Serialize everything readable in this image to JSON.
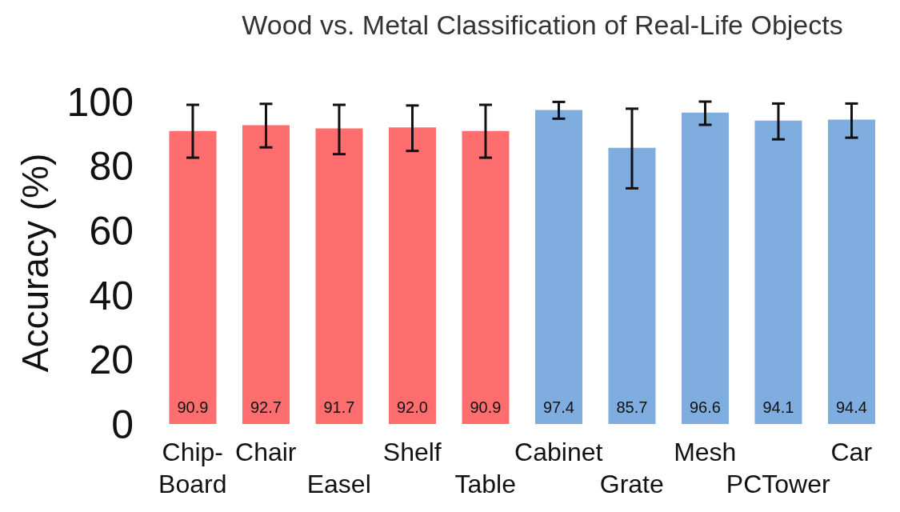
{
  "chart_data": {
    "type": "bar",
    "title": "Wood vs. Metal Classification of Real-Life Objects",
    "ylabel": "Accuracy (%)",
    "categories": [
      "Chip-Board",
      "Chair",
      "Easel",
      "Shelf",
      "Table",
      "Cabinet",
      "Grate",
      "Mesh",
      "PCTower",
      "Car"
    ],
    "values": [
      90.9,
      92.7,
      91.7,
      92.0,
      90.9,
      97.4,
      85.7,
      96.6,
      94.1,
      94.4
    ],
    "colors": [
      "#ff6e6e",
      "#ff6e6e",
      "#ff6e6e",
      "#ff6e6e",
      "#ff6e6e",
      "#7faddf",
      "#7faddf",
      "#7faddf",
      "#7faddf",
      "#7faddf"
    ],
    "errors": [
      [
        82.6,
        99.0
      ],
      [
        85.8,
        99.3
      ],
      [
        83.7,
        99.0
      ],
      [
        84.7,
        98.8
      ],
      [
        82.6,
        99.0
      ],
      [
        94.7,
        99.9
      ],
      [
        73.1,
        97.8
      ],
      [
        92.8,
        100
      ],
      [
        88.3,
        99.4
      ],
      [
        88.8,
        99.4
      ]
    ],
    "value_labels": [
      "90.9",
      "92.7",
      "91.7",
      "92.0",
      "90.9",
      "97.4",
      "85.7",
      "96.6",
      "94.1",
      "94.4"
    ],
    "ylim": [
      0,
      100
    ],
    "yticks": [
      0,
      20,
      40,
      60,
      80,
      100
    ]
  }
}
